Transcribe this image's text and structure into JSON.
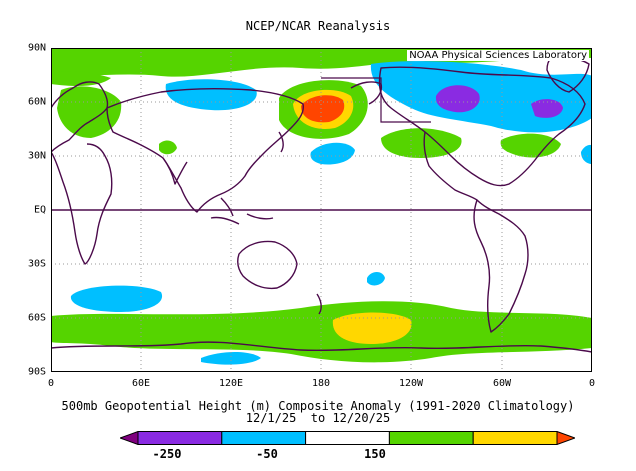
{
  "title": "NCEP/NCAR Reanalysis",
  "credit": "NOAA Physical Sciences Laboratory",
  "subtitle_line1": "500mb Geopotential Height (m) Composite Anomaly (1991-2020 Climatology)",
  "subtitle_line2": "12/1/25  to 12/20/25",
  "lat_labels": [
    "90N",
    "60N",
    "30N",
    "EQ",
    "30S",
    "60S",
    "90S"
  ],
  "lon_labels": [
    "0",
    "60E",
    "120E",
    "180",
    "120W",
    "60W",
    "0"
  ],
  "colorbar": {
    "colors": [
      "#7f007f",
      "#8a2be2",
      "#00bfff",
      "#ffffff",
      "#55d400",
      "#ffd700",
      "#ff4500"
    ],
    "labels": [
      "-250",
      "-50",
      "150"
    ]
  },
  "anomaly_colors": {
    "strong_negative": "#8a2be2",
    "negative": "#00bfff",
    "positive": "#55d400",
    "moderate_positive": "#ffd700",
    "strong_positive": "#ff4500"
  }
}
